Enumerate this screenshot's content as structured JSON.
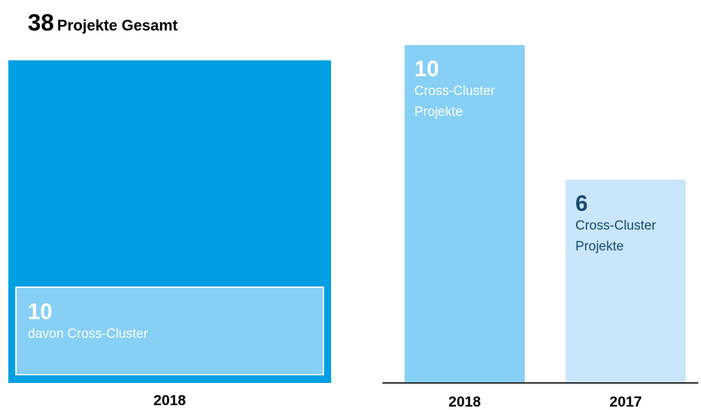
{
  "chart_data": [
    {
      "type": "square",
      "total": 38,
      "title": "Projekte Gesamt",
      "part": 10,
      "part_label": "davon Cross-Cluster",
      "category": "2018",
      "color": "#009fe3",
      "part_color": "#86cff5"
    },
    {
      "type": "bar",
      "categories": [
        "2018",
        "2017"
      ],
      "values": [
        10,
        6
      ],
      "value_text": "Cross-Cluster Projekte",
      "ylim": [
        0,
        10
      ],
      "colors": [
        "#86cff5",
        "#c9e6fa"
      ],
      "text_colors": [
        "#ffffff",
        "#16496f"
      ]
    }
  ]
}
